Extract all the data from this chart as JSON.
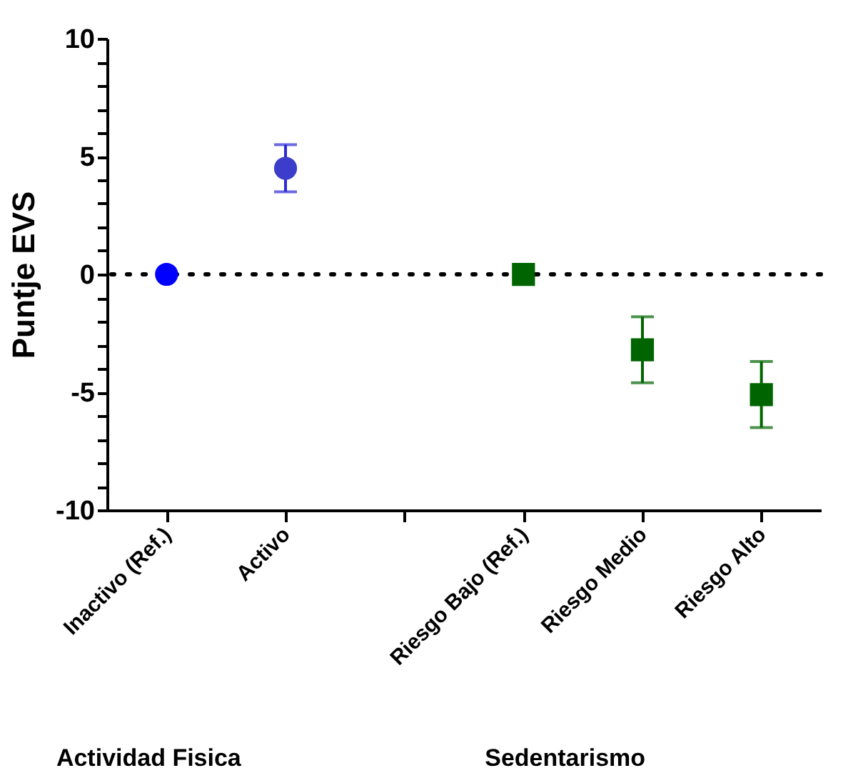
{
  "chart_data": {
    "type": "scatter",
    "ylabel": "Puntje EVS",
    "categories": [
      "Inactivo (Ref.)",
      "Activo",
      null,
      "Riesgo Bajo (Ref.)",
      "Riesgo Medio",
      "Riesgo Alto"
    ],
    "series": [
      {
        "marker": "circle",
        "color": "#2b2bd6",
        "colors": [
          "#0000ff",
          "#3d3dcc",
          null,
          null,
          null,
          null
        ],
        "values": [
          0,
          4.5,
          null,
          null,
          null,
          null
        ],
        "errors": [
          null,
          [
            3.5,
            5.5
          ],
          null,
          null,
          null,
          null
        ]
      },
      {
        "marker": "square",
        "color": "#006400",
        "values": [
          null,
          null,
          null,
          0,
          -3.2,
          -5.1
        ],
        "errors": [
          null,
          null,
          null,
          null,
          [
            -4.6,
            -1.8
          ],
          [
            -6.5,
            -3.7
          ]
        ]
      }
    ],
    "ylim": [
      -10,
      10
    ],
    "yticks": [
      -10,
      {
        "value": -9,
        "label": null
      },
      {
        "value": -8,
        "label": null
      },
      {
        "value": -7,
        "label": null
      },
      {
        "value": -6,
        "label": null
      },
      -5,
      {
        "value": -4,
        "label": null
      },
      {
        "value": -3,
        "label": null
      },
      {
        "value": -2,
        "label": null
      },
      {
        "value": -1,
        "label": null
      },
      0,
      {
        "value": 1,
        "label": null
      },
      {
        "value": 2,
        "label": null
      },
      {
        "value": 3,
        "label": null
      },
      {
        "value": 4,
        "label": null
      },
      5,
      {
        "value": 6,
        "label": null
      },
      {
        "value": 7,
        "label": null
      },
      {
        "value": 8,
        "label": null
      },
      {
        "value": 9,
        "label": null
      },
      10
    ],
    "ref_lines": [
      {
        "axis": "y",
        "value": 0,
        "color": "#000000",
        "line_style": "dotted"
      }
    ],
    "annotations": [
      "Actividad Fisica",
      "Sedentarismo"
    ]
  }
}
